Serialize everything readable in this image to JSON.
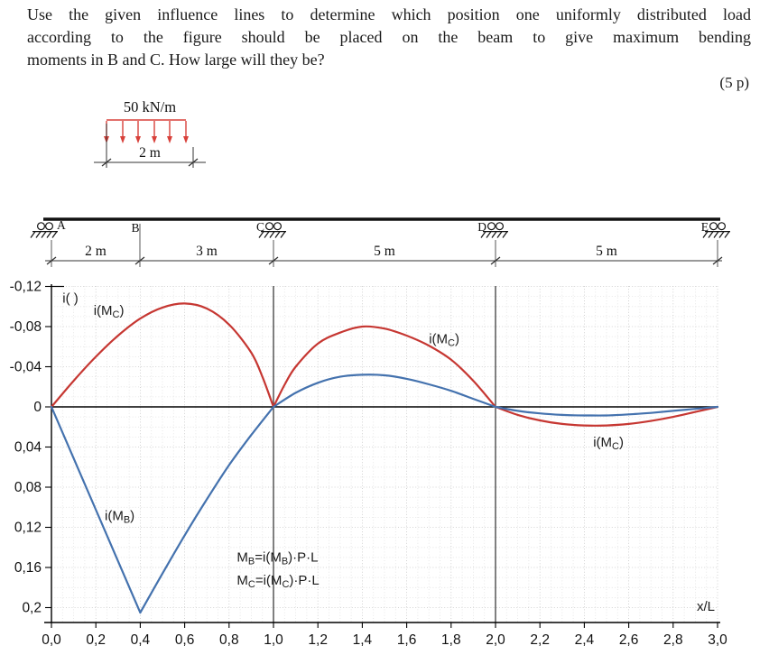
{
  "problem": {
    "statement_lines": [
      "Use the given influence lines to determine which position one uniformly distributed load",
      "according to the figure should be placed on the beam to give maximum bending",
      "moments in B and C. How large will they be?"
    ],
    "points": "(5 p)"
  },
  "load_figure": {
    "intensity": "50 kN/m",
    "width": "2 m"
  },
  "beam": {
    "node_labels": [
      "A",
      "B",
      "C",
      "D",
      "E"
    ],
    "span_labels": [
      "2 m",
      "3 m",
      "5 m",
      "5 m"
    ]
  },
  "chart_data": {
    "type": "line",
    "title": "",
    "xlabel": "x/L",
    "ylabel": "i( )",
    "x_range": [
      0.0,
      3.0
    ],
    "y_range": [
      -0.12,
      0.2
    ],
    "y_axis_inverted": true,
    "grid": true,
    "support_marker_lines_x": [
      1.0,
      2.0
    ],
    "x_ticks": [
      {
        "v": 0.0,
        "label": "0,0"
      },
      {
        "v": 0.2,
        "label": "0,2"
      },
      {
        "v": 0.4,
        "label": "0,4"
      },
      {
        "v": 0.6,
        "label": "0,6"
      },
      {
        "v": 0.8,
        "label": "0,8"
      },
      {
        "v": 1.0,
        "label": "1,0"
      },
      {
        "v": 1.2,
        "label": "1,2"
      },
      {
        "v": 1.4,
        "label": "1,4"
      },
      {
        "v": 1.6,
        "label": "1,6"
      },
      {
        "v": 1.8,
        "label": "1,8"
      },
      {
        "v": 2.0,
        "label": "2,0"
      },
      {
        "v": 2.2,
        "label": "2,2"
      },
      {
        "v": 2.4,
        "label": "2,4"
      },
      {
        "v": 2.6,
        "label": "2,6"
      },
      {
        "v": 2.8,
        "label": "2,8"
      },
      {
        "v": 3.0,
        "label": "3,0"
      }
    ],
    "y_ticks": [
      {
        "v": -0.12,
        "label": "-0,12"
      },
      {
        "v": -0.08,
        "label": "-0,08"
      },
      {
        "v": -0.04,
        "label": "-0,04"
      },
      {
        "v": 0.0,
        "label": "0"
      },
      {
        "v": 0.04,
        "label": "0,04"
      },
      {
        "v": 0.08,
        "label": "0,08"
      },
      {
        "v": 0.12,
        "label": "0,12"
      },
      {
        "v": 0.16,
        "label": "0,16"
      },
      {
        "v": 0.2,
        "label": "0,2"
      }
    ],
    "series": [
      {
        "id": "influence-line-mc",
        "name": "i(M_C)",
        "color": "#c63732",
        "segments": [
          {
            "x": [
              0,
              0.1,
              0.2,
              0.3,
              0.4,
              0.5,
              0.6,
              0.7,
              0.8,
              0.9,
              0.95,
              1.0
            ],
            "y": [
              0,
              -0.026,
              -0.05,
              -0.071,
              -0.088,
              -0.099,
              -0.103,
              -0.098,
              -0.082,
              -0.054,
              -0.03,
              0
            ]
          },
          {
            "x": [
              1.0,
              1.05,
              1.1,
              1.2,
              1.3,
              1.4,
              1.5,
              1.6,
              1.7,
              1.8,
              1.9,
              2.0
            ],
            "y": [
              0,
              -0.022,
              -0.04,
              -0.063,
              -0.074,
              -0.08,
              -0.078,
              -0.071,
              -0.061,
              -0.047,
              -0.026,
              0
            ]
          },
          {
            "x": [
              2.0,
              2.1,
              2.2,
              2.3,
              2.4,
              2.5,
              2.6,
              2.7,
              2.8,
              2.9,
              3.0
            ],
            "y": [
              0,
              0.008,
              0.0135,
              0.017,
              0.0185,
              0.0185,
              0.017,
              0.014,
              0.01,
              0.005,
              0
            ]
          }
        ]
      },
      {
        "id": "influence-line-mb",
        "name": "i(M_B)",
        "color": "#4472ae",
        "segments": [
          {
            "x": [
              0,
              0.2,
              0.4
            ],
            "y": [
              0,
              0.1025,
              0.205
            ]
          },
          {
            "x": [
              0.4,
              0.5,
              0.6,
              0.7,
              0.8,
              0.9,
              1.0
            ],
            "y": [
              0.205,
              0.166,
              0.128,
              0.092,
              0.058,
              0.028,
              0
            ]
          },
          {
            "x": [
              1.0,
              1.1,
              1.2,
              1.3,
              1.4,
              1.5,
              1.6,
              1.7,
              1.8,
              1.9,
              2.0
            ],
            "y": [
              0,
              -0.014,
              -0.024,
              -0.03,
              -0.032,
              -0.0315,
              -0.028,
              -0.0225,
              -0.016,
              -0.008,
              0
            ]
          },
          {
            "x": [
              2.0,
              2.1,
              2.2,
              2.3,
              2.4,
              2.5,
              2.6,
              2.7,
              2.8,
              2.9,
              3.0
            ],
            "y": [
              0,
              0.004,
              0.0065,
              0.008,
              0.0085,
              0.0085,
              0.0075,
              0.006,
              0.004,
              0.002,
              0
            ]
          }
        ]
      }
    ],
    "annotations": [
      {
        "text": "i(M_{C})",
        "x": 0.19,
        "y": -0.0915
      },
      {
        "text": "i(M_{C})",
        "x": 1.7,
        "y": -0.0635
      },
      {
        "text": "i(M_{C})",
        "x": 2.44,
        "y": 0.0395
      },
      {
        "text": "i(M_{B})",
        "x": 0.24,
        "y": 0.113
      },
      {
        "text": "M_{B}=i(M_{B})·P·L",
        "x": 0.835,
        "y": 0.154
      },
      {
        "text": "M_{C}=i(M_{C})·P·L",
        "x": 0.835,
        "y": 0.177
      }
    ]
  }
}
